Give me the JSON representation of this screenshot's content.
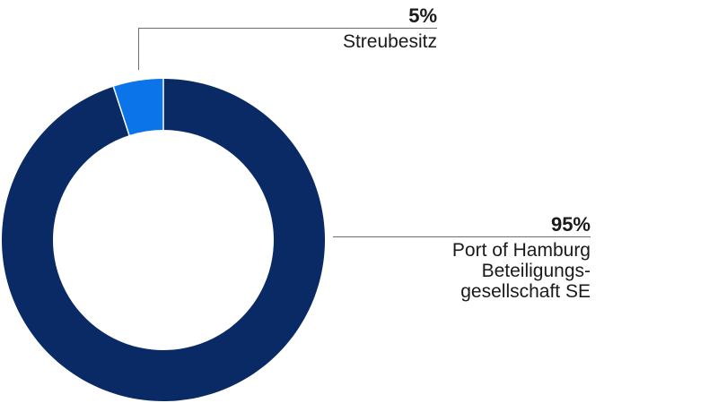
{
  "chart_data": {
    "type": "pie",
    "donut": true,
    "title": "",
    "legend_position": "callout-labels",
    "direction": "clockwise",
    "start_angle_deg": 0,
    "separator_color": "#FFFFFF",
    "slices": [
      {
        "name": "Port of Hamburg Beteiligungsgesellschaft SE",
        "value": 95,
        "pct_label": "95%",
        "color": "#0A2A66",
        "label_lines": [
          "Port of Hamburg",
          "Beteiligungs-",
          "gesellschaft SE"
        ]
      },
      {
        "name": "Streubesitz",
        "value": 5,
        "pct_label": "5%",
        "color": "#0A74E8",
        "label_lines": [
          "Streubesitz"
        ]
      }
    ]
  },
  "style": {
    "leader_line_color": "#6e6e6e",
    "text_color": "#1a1a1a",
    "background": "#FFFFFF"
  }
}
